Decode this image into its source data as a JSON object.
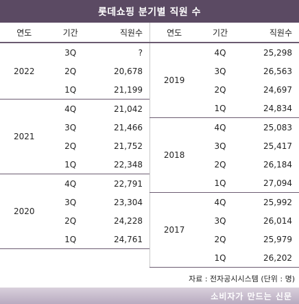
{
  "title": "롯데쇼핑 분기별 직원 수",
  "headers": {
    "year": "연도",
    "period": "기간",
    "staff": "직원수"
  },
  "left_groups": [
    {
      "year": "2022",
      "rows": [
        {
          "q": "3Q",
          "v": "?"
        },
        {
          "q": "2Q",
          "v": "20,678"
        },
        {
          "q": "1Q",
          "v": "21,199"
        }
      ]
    },
    {
      "year": "2021",
      "rows": [
        {
          "q": "4Q",
          "v": "21,042"
        },
        {
          "q": "3Q",
          "v": "21,466"
        },
        {
          "q": "2Q",
          "v": "21,752"
        },
        {
          "q": "1Q",
          "v": "22,348"
        }
      ]
    },
    {
      "year": "2020",
      "rows": [
        {
          "q": "4Q",
          "v": "22,791"
        },
        {
          "q": "3Q",
          "v": "23,304"
        },
        {
          "q": "2Q",
          "v": "24,228"
        },
        {
          "q": "1Q",
          "v": "24,761"
        }
      ]
    }
  ],
  "right_groups": [
    {
      "year": "2019",
      "rows": [
        {
          "q": "4Q",
          "v": "25,298"
        },
        {
          "q": "3Q",
          "v": "26,563"
        },
        {
          "q": "2Q",
          "v": "24,697"
        },
        {
          "q": "1Q",
          "v": "24,834"
        }
      ]
    },
    {
      "year": "2018",
      "rows": [
        {
          "q": "4Q",
          "v": "25,083"
        },
        {
          "q": "3Q",
          "v": "25,417"
        },
        {
          "q": "2Q",
          "v": "26,184"
        },
        {
          "q": "1Q",
          "v": "27,094"
        }
      ]
    },
    {
      "year": "2017",
      "rows": [
        {
          "q": "4Q",
          "v": "25,992"
        },
        {
          "q": "3Q",
          "v": "26,014"
        },
        {
          "q": "2Q",
          "v": "25,979"
        },
        {
          "q": "1Q",
          "v": "26,202"
        }
      ]
    }
  ],
  "source": "자료 : 전자공시시스템 (단위 : 명)",
  "footer": "소비자가 만드는 신문"
}
